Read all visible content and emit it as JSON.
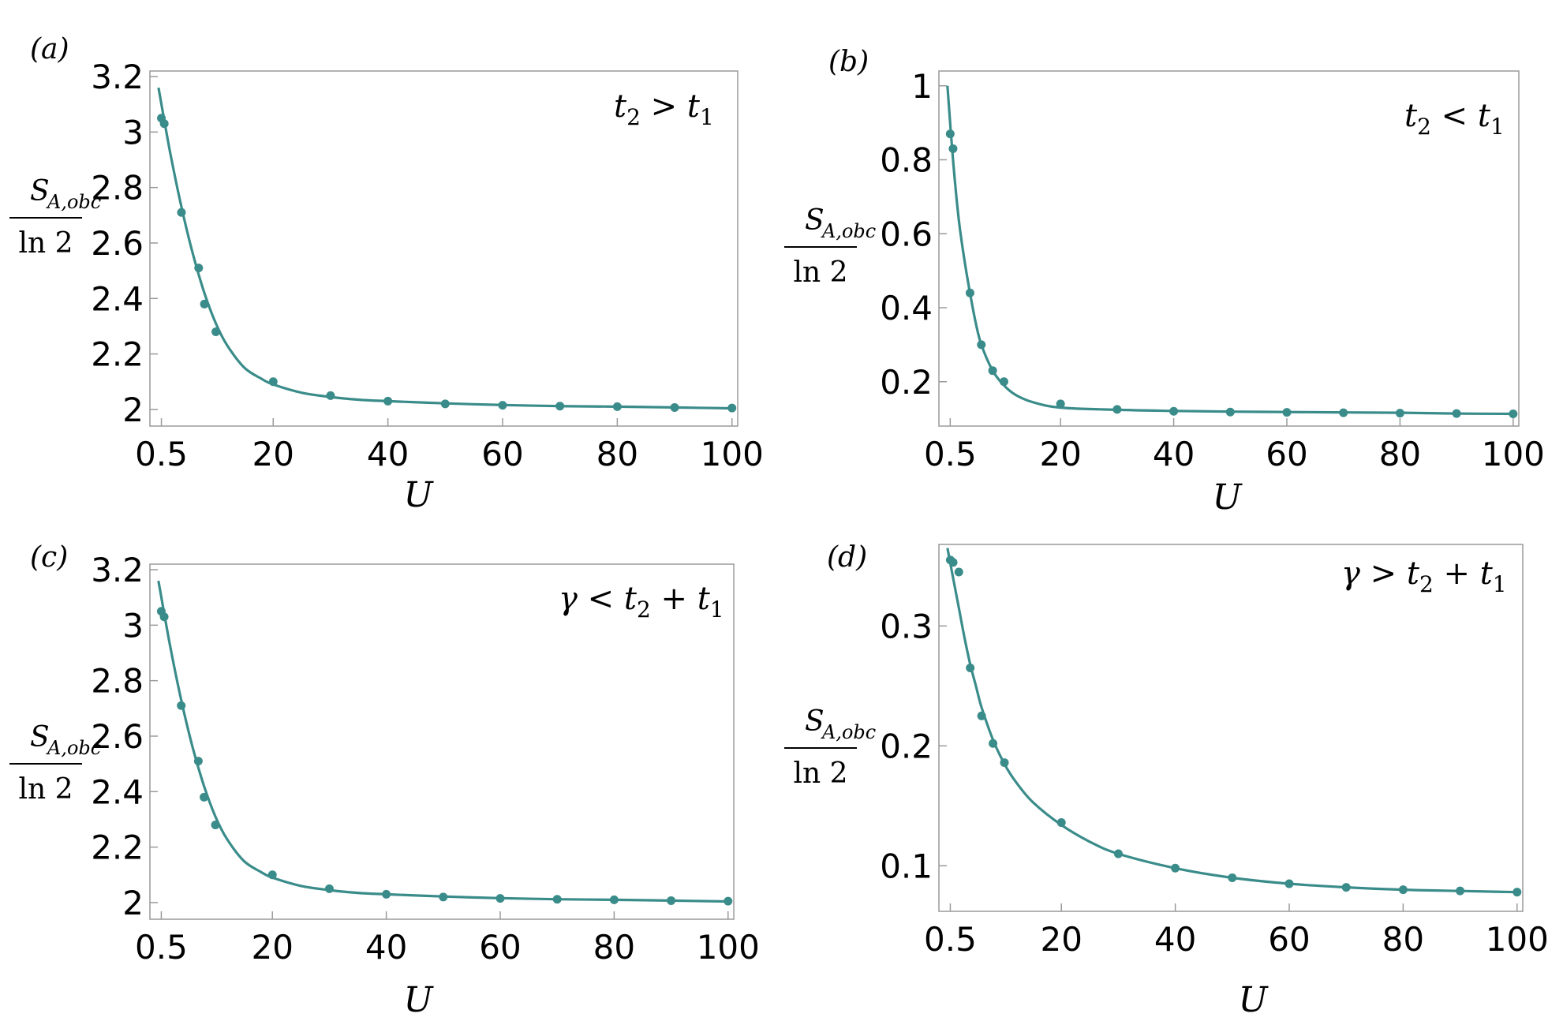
{
  "chart_data": [
    {
      "type": "scatter",
      "panel": "(a)",
      "annotation": {
        "lhs": "t",
        "lhs_sub": "2",
        "op": ">",
        "rhs": "t",
        "rhs_sub": "1",
        "rhs_pre": ""
      },
      "xlabel": "U",
      "ylabel": {
        "num_main": "S",
        "num_sub": "A,obc",
        "den": "ln 2"
      },
      "xticks": [
        "0.5",
        "20",
        "40",
        "60",
        "80",
        "100"
      ],
      "xtick_values": [
        0.5,
        20,
        40,
        60,
        80,
        100
      ],
      "yticks": [
        "2",
        "2.2",
        "2.4",
        "2.6",
        "2.8",
        "3",
        "3.2"
      ],
      "ytick_values": [
        2,
        2.2,
        2.4,
        2.6,
        2.8,
        3,
        3.2
      ],
      "xlim": [
        -1.5,
        101
      ],
      "ylim": [
        1.94,
        3.22
      ],
      "series": [
        {
          "x": [
            0.5,
            1,
            4,
            7,
            8,
            10,
            20,
            30,
            40,
            50,
            60,
            70,
            80,
            90,
            100
          ],
          "y": [
            3.05,
            3.03,
            2.71,
            2.51,
            2.38,
            2.28,
            2.1,
            2.05,
            2.03,
            2.02,
            2.015,
            2.012,
            2.01,
            2.007,
            2.005
          ]
        }
      ],
      "fit_curve": {
        "x": [
          0,
          2,
          4,
          6,
          8,
          10,
          12,
          15,
          18,
          20,
          25,
          30,
          35,
          40,
          50,
          60,
          70,
          80,
          90,
          100
        ],
        "y": [
          3.16,
          2.93,
          2.73,
          2.56,
          2.42,
          2.31,
          2.23,
          2.15,
          2.11,
          2.09,
          2.06,
          2.045,
          2.035,
          2.03,
          2.022,
          2.016,
          2.012,
          2.01,
          2.007,
          2.004
        ]
      },
      "color": "#3a8c8a"
    },
    {
      "type": "scatter",
      "panel": "(b)",
      "annotation": {
        "lhs": "t",
        "lhs_sub": "2",
        "op": "<",
        "rhs": "t",
        "rhs_sub": "1",
        "rhs_pre": ""
      },
      "xlabel": "U",
      "ylabel": {
        "num_main": "S",
        "num_sub": "A,obc",
        "den": "ln 2"
      },
      "xticks": [
        "0.5",
        "20",
        "40",
        "60",
        "80",
        "100"
      ],
      "xtick_values": [
        0.5,
        20,
        40,
        60,
        80,
        100
      ],
      "yticks": [
        "0.2",
        "0.4",
        "0.6",
        "0.8",
        "1"
      ],
      "ytick_values": [
        0.2,
        0.4,
        0.6,
        0.8,
        1
      ],
      "xlim": [
        -1.5,
        101
      ],
      "ylim": [
        0.08,
        1.04
      ],
      "series": [
        {
          "x": [
            0.5,
            1,
            4,
            6,
            8,
            10,
            20,
            30,
            40,
            50,
            60,
            70,
            80,
            90,
            100
          ],
          "y": [
            0.87,
            0.83,
            0.44,
            0.3,
            0.23,
            0.2,
            0.14,
            0.125,
            0.12,
            0.118,
            0.117,
            0.116,
            0.115,
            0.114,
            0.113
          ]
        }
      ],
      "fit_curve": {
        "x": [
          0,
          1,
          2,
          3,
          4,
          5,
          6,
          8,
          10,
          12,
          15,
          20,
          30,
          40,
          50,
          60,
          70,
          80,
          90,
          100
        ],
        "y": [
          1.0,
          0.8,
          0.64,
          0.53,
          0.44,
          0.36,
          0.3,
          0.23,
          0.19,
          0.165,
          0.145,
          0.13,
          0.124,
          0.121,
          0.119,
          0.118,
          0.117,
          0.116,
          0.114,
          0.113
        ]
      },
      "color": "#3a8c8a"
    },
    {
      "type": "scatter",
      "panel": "(c)",
      "annotation": {
        "lhs": "γ",
        "lhs_sub": "",
        "op": "<",
        "rhs": "t",
        "rhs_sub": "1",
        "rhs_pre": "t₂ +"
      },
      "xlabel": "U",
      "ylabel": {
        "num_main": "S",
        "num_sub": "A,obc",
        "den": "ln 2"
      },
      "xticks": [
        "0.5",
        "20",
        "40",
        "60",
        "80",
        "100"
      ],
      "xtick_values": [
        0.5,
        20,
        40,
        60,
        80,
        100
      ],
      "yticks": [
        "2",
        "2.2",
        "2.4",
        "2.6",
        "2.8",
        "3",
        "3.2"
      ],
      "ytick_values": [
        2,
        2.2,
        2.4,
        2.6,
        2.8,
        3,
        3.2
      ],
      "xlim": [
        -1.5,
        101
      ],
      "ylim": [
        1.94,
        3.22
      ],
      "series": [
        {
          "x": [
            0.5,
            1,
            4,
            7,
            8,
            10,
            20,
            30,
            40,
            50,
            60,
            70,
            80,
            90,
            100
          ],
          "y": [
            3.05,
            3.03,
            2.71,
            2.51,
            2.38,
            2.28,
            2.1,
            2.05,
            2.03,
            2.02,
            2.015,
            2.012,
            2.01,
            2.007,
            2.005
          ]
        }
      ],
      "fit_curve": {
        "x": [
          0,
          2,
          4,
          6,
          8,
          10,
          12,
          15,
          18,
          20,
          25,
          30,
          35,
          40,
          50,
          60,
          70,
          80,
          90,
          100
        ],
        "y": [
          3.16,
          2.93,
          2.73,
          2.56,
          2.42,
          2.31,
          2.23,
          2.15,
          2.11,
          2.09,
          2.06,
          2.045,
          2.035,
          2.03,
          2.022,
          2.016,
          2.012,
          2.01,
          2.007,
          2.004
        ]
      },
      "color": "#3a8c8a"
    },
    {
      "type": "scatter",
      "panel": "(d)",
      "annotation": {
        "lhs": "γ",
        "lhs_sub": "",
        "op": ">",
        "rhs": "t",
        "rhs_sub": "1",
        "rhs_pre": "t₂ +"
      },
      "xlabel": "U",
      "ylabel": {
        "num_main": "S",
        "num_sub": "A,obc",
        "den": "ln 2"
      },
      "xticks": [
        "0.5",
        "20",
        "40",
        "60",
        "80",
        "100"
      ],
      "xtick_values": [
        0.5,
        20,
        40,
        60,
        80,
        100
      ],
      "yticks": [
        "0.1",
        "0.2",
        "0.3"
      ],
      "ytick_values": [
        0.1,
        0.2,
        0.3
      ],
      "xlim": [
        -1.5,
        101
      ],
      "ylim": [
        0.062,
        0.368
      ],
      "series": [
        {
          "x": [
            0.5,
            1,
            2,
            4,
            6,
            8,
            10,
            20,
            30,
            40,
            50,
            60,
            70,
            80,
            90,
            100
          ],
          "y": [
            0.355,
            0.353,
            0.345,
            0.265,
            0.225,
            0.202,
            0.186,
            0.136,
            0.11,
            0.098,
            0.09,
            0.085,
            0.082,
            0.08,
            0.079,
            0.078
          ]
        }
      ],
      "fit_curve": {
        "x": [
          0,
          1,
          2,
          3,
          4,
          5,
          6,
          8,
          10,
          12,
          15,
          20,
          25,
          30,
          40,
          50,
          60,
          70,
          80,
          90,
          100
        ],
        "y": [
          0.365,
          0.34,
          0.315,
          0.29,
          0.268,
          0.25,
          0.232,
          0.205,
          0.185,
          0.17,
          0.153,
          0.134,
          0.12,
          0.11,
          0.098,
          0.09,
          0.085,
          0.082,
          0.08,
          0.079,
          0.078
        ]
      },
      "color": "#3a8c8a"
    }
  ]
}
